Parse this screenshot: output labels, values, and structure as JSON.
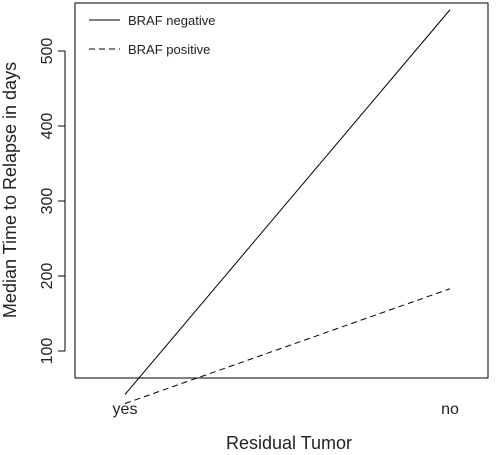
{
  "chart_data": {
    "type": "line",
    "title": "",
    "xlabel": "Residual Tumor",
    "ylabel": "Median Time to Relapse in days",
    "categories": [
      "yes",
      "no"
    ],
    "y_ticks": [
      100,
      200,
      300,
      400,
      500
    ],
    "ylim": [
      20,
      565
    ],
    "grid": false,
    "legend_position": "top-left",
    "series": [
      {
        "name": "BRAF negative",
        "line_style": "solid",
        "color": "#000000",
        "values": [
          42,
          555
        ]
      },
      {
        "name": "BRAF positive",
        "line_style": "dashed",
        "color": "#000000",
        "values": [
          30,
          183
        ]
      }
    ]
  }
}
